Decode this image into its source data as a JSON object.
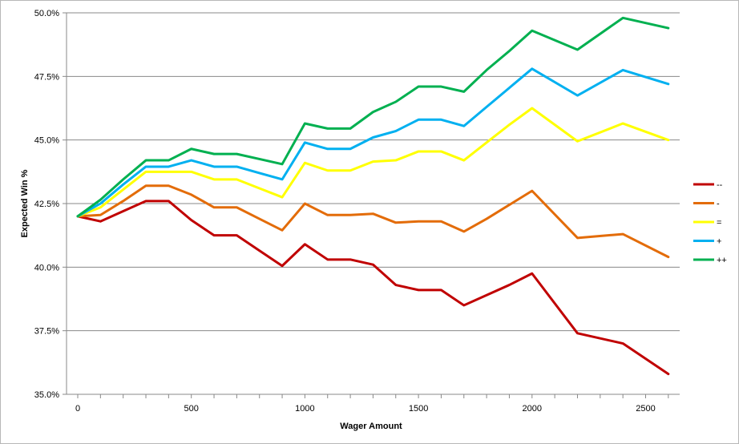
{
  "chart_data": {
    "type": "line",
    "title": "",
    "xlabel": "Wager Amount",
    "ylabel": "Expected Win %",
    "xlim": [
      0,
      2650
    ],
    "ylim": [
      35.0,
      50.0
    ],
    "x_ticks": [
      0,
      500,
      1000,
      1500,
      2000,
      2500
    ],
    "x_tick_labels": [
      "0",
      "500",
      "1000",
      "1500",
      "2000",
      "2500"
    ],
    "y_ticks": [
      35.0,
      37.5,
      40.0,
      42.5,
      45.0,
      47.5,
      50.0
    ],
    "y_tick_labels": [
      "35.0%",
      "37.5%",
      "40.0%",
      "42.5%",
      "45.0%",
      "47.5%",
      "50.0%"
    ],
    "grid": "horizontal",
    "legend_position": "right",
    "x": [
      0,
      100,
      200,
      300,
      400,
      500,
      600,
      700,
      800,
      900,
      1000,
      1100,
      1200,
      1300,
      1400,
      1500,
      1600,
      1700,
      1800,
      1900,
      2000,
      2200,
      2400,
      2600
    ],
    "series": [
      {
        "name": "--",
        "color": "#c00000",
        "values": [
          42.0,
          41.8,
          42.2,
          42.6,
          42.6,
          41.85,
          41.25,
          41.25,
          40.65,
          40.05,
          40.9,
          40.3,
          40.3,
          40.1,
          39.3,
          39.1,
          39.1,
          38.5,
          38.9,
          39.3,
          39.75,
          37.4,
          37.0,
          35.8
        ]
      },
      {
        "name": "-",
        "color": "#e36c09",
        "values": [
          42.0,
          42.05,
          42.6,
          43.2,
          43.2,
          42.85,
          42.35,
          42.35,
          41.9,
          41.45,
          42.5,
          42.05,
          42.05,
          42.1,
          41.75,
          41.8,
          41.8,
          41.4,
          41.9,
          42.45,
          43.0,
          41.15,
          41.3,
          40.4
        ]
      },
      {
        "name": "=",
        "color": "#ffff00",
        "values": [
          42.0,
          42.35,
          43.05,
          43.75,
          43.75,
          43.75,
          43.45,
          43.45,
          43.1,
          42.75,
          44.1,
          43.8,
          43.8,
          44.15,
          44.2,
          44.55,
          44.55,
          44.2,
          44.9,
          45.6,
          46.25,
          44.95,
          45.65,
          45.0
        ]
      },
      {
        "name": "+",
        "color": "#00b0f0",
        "values": [
          42.0,
          42.5,
          43.25,
          43.95,
          43.95,
          44.2,
          43.95,
          43.95,
          43.7,
          43.45,
          44.9,
          44.65,
          44.65,
          45.1,
          45.35,
          45.8,
          45.8,
          45.55,
          46.3,
          47.05,
          47.8,
          46.75,
          47.75,
          47.2
        ]
      },
      {
        "name": "++",
        "color": "#00b050",
        "values": [
          42.0,
          42.65,
          43.45,
          44.2,
          44.2,
          44.65,
          44.45,
          44.45,
          44.25,
          44.05,
          45.65,
          45.45,
          45.45,
          46.1,
          46.5,
          47.1,
          47.1,
          46.9,
          47.75,
          48.5,
          49.3,
          48.55,
          49.8,
          49.4
        ]
      }
    ]
  }
}
